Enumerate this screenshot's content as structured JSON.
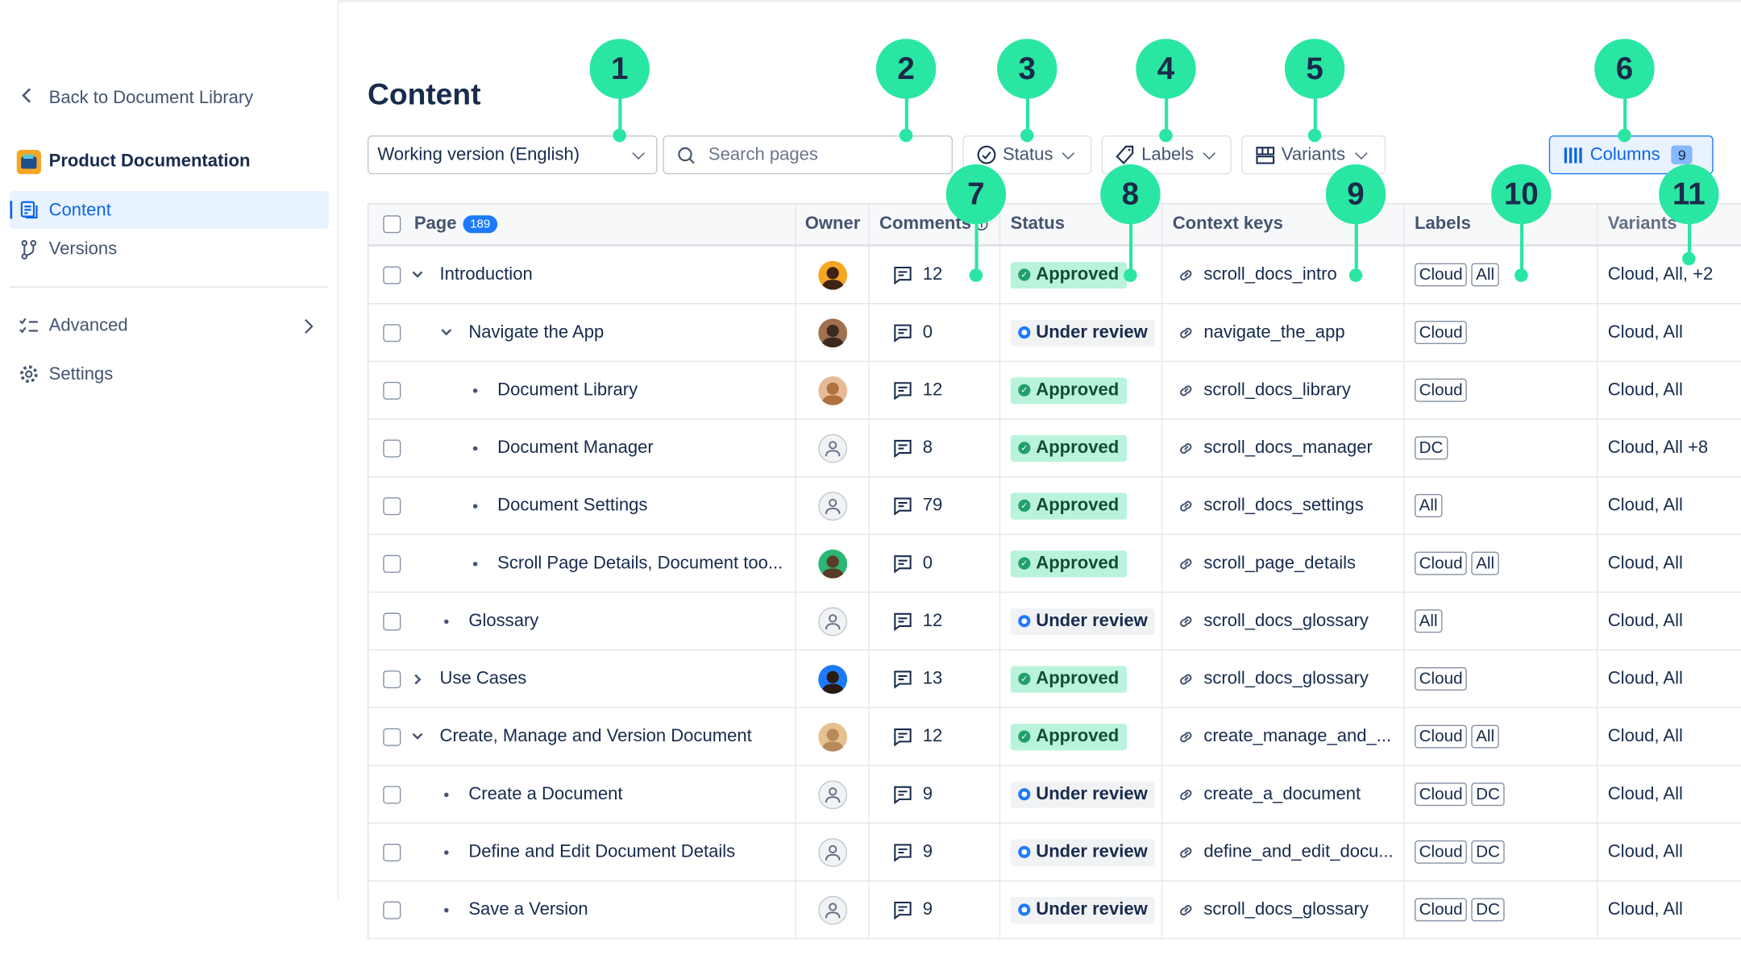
{
  "sidebar": {
    "back_label": "Back to Document Library",
    "space_name": "Product Documentation",
    "items": [
      {
        "label": "Content",
        "active": true
      },
      {
        "label": "Versions"
      }
    ],
    "advanced_label": "Advanced",
    "settings_label": "Settings"
  },
  "main": {
    "title": "Content",
    "version_select": "Working version (English)",
    "search_placeholder": "Search pages",
    "status_filter": "Status",
    "labels_filter": "Labels",
    "variants_filter": "Variants",
    "columns_button": "Columns",
    "columns_count": "9"
  },
  "table": {
    "headers": {
      "page": "Page",
      "page_count": "189",
      "owner": "Owner",
      "comments": "Comments",
      "status": "Status",
      "context_keys": "Context keys",
      "labels": "Labels",
      "variants": "Variants"
    },
    "rows": [
      {
        "title": "Introduction",
        "level": 0,
        "toggle": "down",
        "owner": "photo-1",
        "comments": "12",
        "status": "Approved",
        "key": "scroll_docs_intro",
        "labels": [
          "Cloud",
          "All"
        ],
        "variants": "Cloud, All, +2"
      },
      {
        "title": "Navigate the App",
        "level": 1,
        "toggle": "down",
        "owner": "photo-2",
        "comments": "0",
        "status": "Under review",
        "key": "navigate_the_app",
        "labels": [
          "Cloud"
        ],
        "variants": "Cloud, All"
      },
      {
        "title": "Document Library",
        "level": 2,
        "toggle": "bullet",
        "owner": "photo-3",
        "comments": "12",
        "status": "Approved",
        "key": "scroll_docs_library",
        "labels": [
          "Cloud"
        ],
        "variants": "Cloud, All"
      },
      {
        "title": "Document Manager",
        "level": 2,
        "toggle": "bullet",
        "owner": "default",
        "comments": "8",
        "status": "Approved",
        "key": "scroll_docs_manager",
        "labels": [
          "DC"
        ],
        "variants": "Cloud, All +8"
      },
      {
        "title": "Document Settings",
        "level": 2,
        "toggle": "bullet",
        "owner": "default",
        "comments": "79",
        "status": "Approved",
        "key": "scroll_docs_settings",
        "labels": [
          "All"
        ],
        "variants": "Cloud, All"
      },
      {
        "title": "Scroll Page Details, Document too...",
        "level": 2,
        "toggle": "bullet",
        "owner": "photo-4",
        "comments": "0",
        "status": "Approved",
        "key": "scroll_page_details",
        "labels": [
          "Cloud",
          "All"
        ],
        "variants": "Cloud, All"
      },
      {
        "title": "Glossary",
        "level": 1,
        "toggle": "bullet",
        "owner": "default",
        "comments": "12",
        "status": "Under review",
        "key": "scroll_docs_glossary",
        "labels": [
          "All"
        ],
        "variants": "Cloud, All"
      },
      {
        "title": "Use Cases",
        "level": 0,
        "toggle": "right",
        "owner": "photo-5",
        "comments": "13",
        "status": "Approved",
        "key": "scroll_docs_glossary",
        "labels": [
          "Cloud"
        ],
        "variants": "Cloud, All"
      },
      {
        "title": "Create, Manage and Version Document",
        "level": 0,
        "toggle": "down",
        "owner": "photo-6",
        "comments": "12",
        "status": "Approved",
        "key": "create_manage_and_...",
        "labels": [
          "Cloud",
          "All"
        ],
        "variants": "Cloud, All"
      },
      {
        "title": "Create a Document",
        "level": 1,
        "toggle": "bullet",
        "owner": "default",
        "comments": "9",
        "status": "Under review",
        "key": "create_a_document",
        "labels": [
          "Cloud",
          "DC"
        ],
        "variants": "Cloud, All"
      },
      {
        "title": "Define and Edit Document Details",
        "level": 1,
        "toggle": "bullet",
        "owner": "default",
        "comments": "9",
        "status": "Under review",
        "key": "define_and_edit_docu...",
        "labels": [
          "Cloud",
          "DC"
        ],
        "variants": "Cloud, All"
      },
      {
        "title": "Save a Version",
        "level": 1,
        "toggle": "bullet",
        "owner": "default",
        "comments": "9",
        "status": "Under review",
        "key": "scroll_docs_glossary",
        "labels": [
          "Cloud",
          "DC"
        ],
        "variants": "Cloud, All"
      }
    ]
  },
  "annotations": [
    "1",
    "2",
    "3",
    "4",
    "5",
    "6",
    "7",
    "8",
    "9",
    "10",
    "11"
  ],
  "colors": {
    "accent": "#1d7afc",
    "annotation": "#2ae6a3",
    "approved_bg": "#baf3db",
    "approved_dot": "#22a06b",
    "active_nav_bg": "#e9f2ff"
  }
}
